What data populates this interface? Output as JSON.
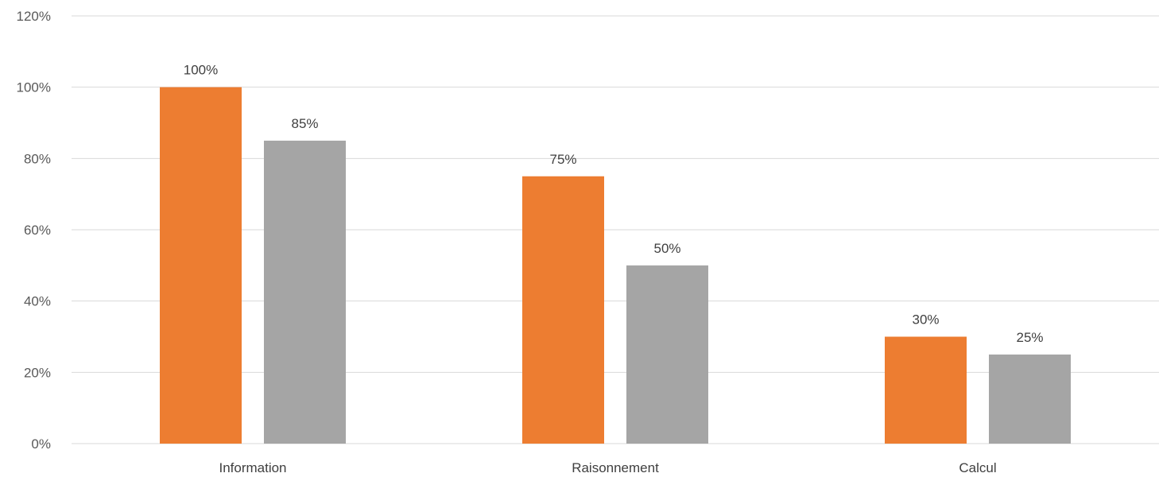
{
  "chart_data": {
    "type": "bar",
    "categories": [
      "Information",
      "Raisonnement",
      "Calcul"
    ],
    "series": [
      {
        "values": [
          100,
          75,
          30
        ],
        "color": "#ED7D31"
      },
      {
        "values": [
          85,
          50,
          25
        ],
        "color": "#A5A5A5"
      }
    ],
    "ylim": [
      0,
      120
    ],
    "yticks": [
      0,
      20,
      40,
      60,
      80,
      100,
      120
    ],
    "ytick_labels": [
      "0%",
      "20%",
      "40%",
      "60%",
      "80%",
      "100%",
      "120%"
    ],
    "data_labels": [
      [
        "100%",
        "75%",
        "30%"
      ],
      [
        "85%",
        "50%",
        "25%"
      ]
    ],
    "grid": true,
    "legend": "none",
    "title": "",
    "xlabel": "",
    "ylabel": ""
  }
}
